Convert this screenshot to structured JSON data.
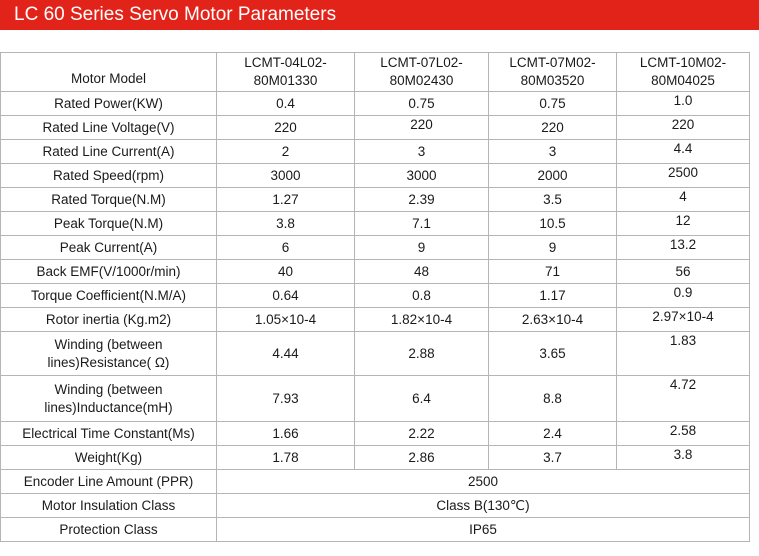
{
  "title": "LC 60 Series Servo Motor Parameters",
  "table": {
    "header": {
      "label": "Motor Model",
      "models": [
        {
          "line1": "LCMT-04L02-",
          "line2": "80M01330"
        },
        {
          "line1": "LCMT-07L02-",
          "line2": "80M02430"
        },
        {
          "line1": "LCMT-07M02-",
          "line2": "80M03520"
        },
        {
          "line1": "LCMT-10M02-",
          "line2": "80M04025"
        }
      ]
    },
    "rows": [
      {
        "label": "Rated Power(KW)",
        "values": [
          "0.4",
          "0.75",
          "0.75",
          "1.0"
        ]
      },
      {
        "label": "Rated Line Voltage(V)",
        "values": [
          "220",
          "220",
          "220",
          "220"
        ]
      },
      {
        "label": "Rated Line Current(A)",
        "values": [
          "2",
          "3",
          "3",
          "4.4"
        ]
      },
      {
        "label": "Rated Speed(rpm)",
        "values": [
          "3000",
          "3000",
          "2000",
          "2500"
        ]
      },
      {
        "label": "Rated Torque(N.M)",
        "values": [
          "1.27",
          "2.39",
          "3.5",
          "4"
        ]
      },
      {
        "label": "Peak Torque(N.M)",
        "values": [
          "3.8",
          "7.1",
          "10.5",
          "12"
        ]
      },
      {
        "label": "Peak Current(A)",
        "values": [
          "6",
          "9",
          "9",
          "13.2"
        ]
      },
      {
        "label": "Back EMF(V/1000r/min)",
        "values": [
          "40",
          "48",
          "71",
          "56"
        ]
      },
      {
        "label": "Torque Coefficient(N.M/A)",
        "values": [
          "0.64",
          "0.8",
          "1.17",
          "0.9"
        ]
      },
      {
        "label": "Rotor inertia (Kg.m2)",
        "values": [
          "1.05×10-4",
          "1.82×10-4",
          "2.63×10-4",
          "2.97×10-4"
        ]
      }
    ],
    "resistance": {
      "line1": "Winding (between lines)",
      "line2": "Resistance( Ω)",
      "values": [
        "4.44",
        "2.88",
        "3.65",
        "1.83"
      ]
    },
    "inductance": {
      "line1": "Winding (between lines)",
      "line2": "Inductance(mH)",
      "values": [
        "7.93",
        "6.4",
        "8.8",
        "4.72"
      ]
    },
    "rows2": [
      {
        "label": "Electrical Time Constant(Ms)",
        "values": [
          "1.66",
          "2.22",
          "2.4",
          "2.58"
        ]
      },
      {
        "label": "Weight(Kg)",
        "values": [
          "1.78",
          "2.86",
          "3.7",
          "3.8"
        ]
      }
    ],
    "merged": [
      {
        "label": "Encoder Line Amount (PPR)",
        "value": "2500"
      },
      {
        "label": "Motor Insulation Class",
        "value": "Class B(130℃)"
      },
      {
        "label": "Protection Class",
        "value": "IP65"
      }
    ]
  }
}
